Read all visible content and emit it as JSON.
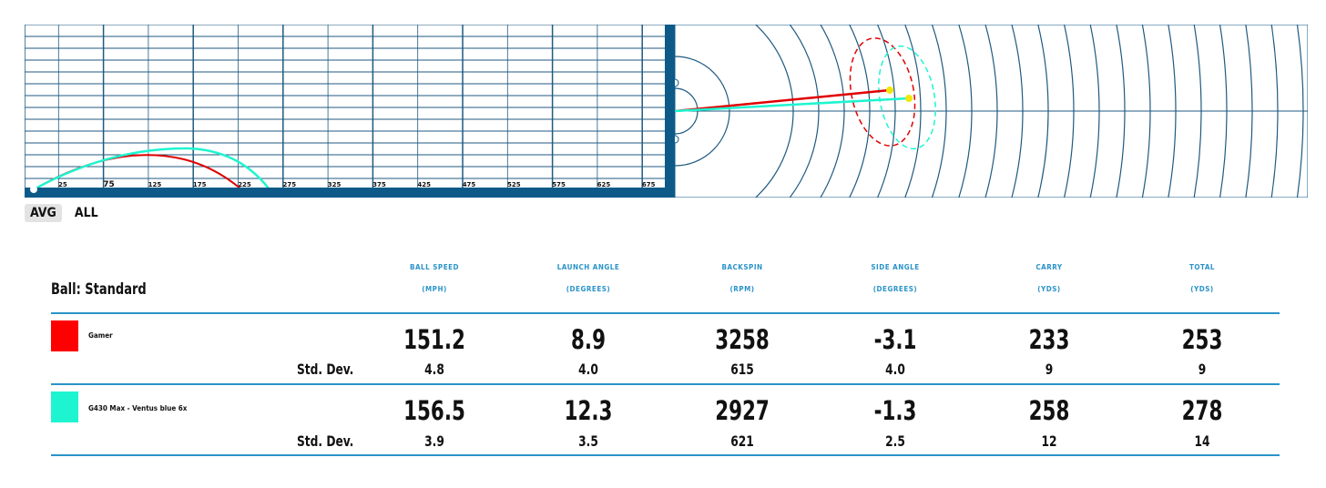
{
  "colors": {
    "accent": "#2a93c8",
    "grid": "#1f5a80",
    "frame": "#0d5a88",
    "club1": "#ff0000",
    "club2": "#1ef5d0",
    "ball": "#f2e60a"
  },
  "side_view": {
    "distance_ticks": [
      "25",
      "75",
      "125",
      "175",
      "225",
      "275",
      "325",
      "375",
      "425",
      "475",
      "525",
      "575",
      "625",
      "675"
    ]
  },
  "tabs": {
    "avg": "AVG",
    "all": "ALL"
  },
  "ball_label": "Ball: Standard",
  "columns": [
    {
      "name": "BALL SPEED",
      "unit": "(MPH)"
    },
    {
      "name": "LAUNCH ANGLE",
      "unit": "(DEGREES)"
    },
    {
      "name": "BACKSPIN",
      "unit": "(RPM)"
    },
    {
      "name": "SIDE ANGLE",
      "unit": "(DEGREES)"
    },
    {
      "name": "CARRY",
      "unit": "(YDS)"
    },
    {
      "name": "TOTAL",
      "unit": "(YDS)"
    }
  ],
  "stddev_label": "Std. Dev.",
  "clubs": [
    {
      "name": "Gamer",
      "color": "#ff0000",
      "values": [
        "151.2",
        "8.9",
        "3258",
        "-3.1",
        "233",
        "253"
      ],
      "stddev": [
        "4.8",
        "4.0",
        "615",
        "4.0",
        "9",
        "9"
      ]
    },
    {
      "name": "G430 Max - Ventus blue 6x",
      "color": "#1ef5d0",
      "values": [
        "156.5",
        "12.3",
        "2927",
        "-1.3",
        "258",
        "278"
      ],
      "stddev": [
        "3.9",
        "3.5",
        "621",
        "2.5",
        "12",
        "14"
      ]
    }
  ]
}
